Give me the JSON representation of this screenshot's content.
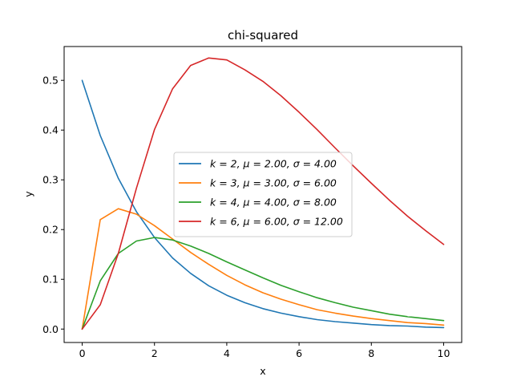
{
  "chart_data": {
    "type": "line",
    "title": "chi-squared",
    "xlabel": "x",
    "ylabel": "y",
    "xlim": [
      -0.5,
      10.5
    ],
    "ylim": [
      -0.027,
      0.568
    ],
    "xticks": [
      0,
      2,
      4,
      6,
      8,
      10
    ],
    "xtick_labels": [
      "0",
      "2",
      "4",
      "6",
      "8",
      "10"
    ],
    "yticks": [
      0.0,
      0.1,
      0.2,
      0.3,
      0.4,
      0.5
    ],
    "ytick_labels": [
      "0.0",
      "0.1",
      "0.2",
      "0.3",
      "0.4",
      "0.5"
    ],
    "grid": false,
    "legend_position": "center",
    "x": [
      0,
      0.5,
      1,
      1.5,
      2,
      2.5,
      3,
      3.5,
      4,
      4.5,
      5,
      5.5,
      6,
      6.5,
      7,
      7.5,
      8,
      8.5,
      9,
      9.5,
      10
    ],
    "series": [
      {
        "name": "k = 2, μ = 2.00, σ = 4.00",
        "color": "#1f77b4",
        "values": [
          0.5,
          0.389,
          0.303,
          0.236,
          0.184,
          0.143,
          0.112,
          0.087,
          0.068,
          0.053,
          0.041,
          0.032,
          0.025,
          0.019,
          0.015,
          0.012,
          0.009,
          0.007,
          0.006,
          0.004,
          0.003
        ]
      },
      {
        "name": "k = 3, μ = 3.00, σ = 6.00",
        "color": "#ff7f0e",
        "values": [
          0.0,
          0.22,
          0.242,
          0.231,
          0.208,
          0.181,
          0.154,
          0.13,
          0.108,
          0.089,
          0.073,
          0.06,
          0.049,
          0.039,
          0.032,
          0.026,
          0.021,
          0.017,
          0.013,
          0.011,
          0.008
        ]
      },
      {
        "name": "k = 4, μ = 4.00, σ = 8.00",
        "color": "#2ca02c",
        "values": [
          0.0,
          0.097,
          0.152,
          0.177,
          0.184,
          0.179,
          0.167,
          0.152,
          0.135,
          0.119,
          0.103,
          0.088,
          0.075,
          0.063,
          0.053,
          0.044,
          0.037,
          0.03,
          0.025,
          0.021,
          0.017
        ]
      },
      {
        "name": "k = 6, μ = 6.00, σ = 12.00",
        "color": "#d62728",
        "values": [
          0.0,
          0.049,
          0.152,
          0.283,
          0.401,
          0.483,
          0.53,
          0.545,
          0.541,
          0.521,
          0.498,
          0.469,
          0.436,
          0.401,
          0.364,
          0.328,
          0.293,
          0.259,
          0.227,
          0.198,
          0.17
        ]
      }
    ]
  }
}
